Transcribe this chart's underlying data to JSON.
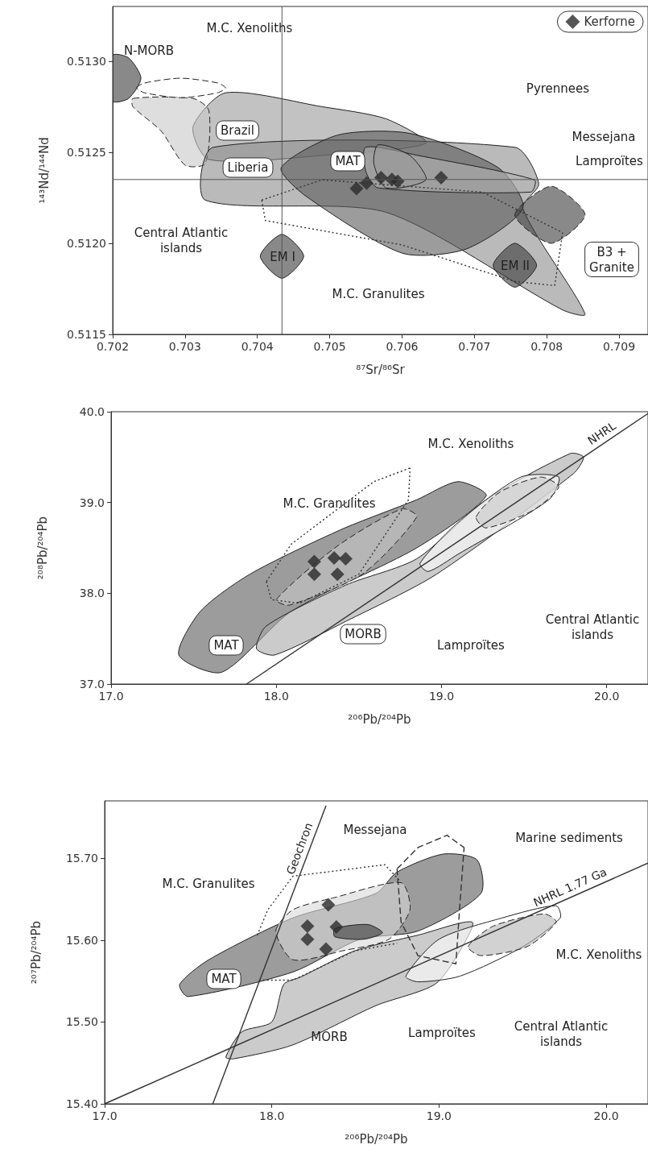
{
  "chart_data": [
    {
      "type": "scatter",
      "xlabel": "⁸⁷Sr/⁸⁶Sr",
      "ylabel": "¹⁴³Nd/¹⁴⁴Nd",
      "xlim": [
        0.702,
        0.7094
      ],
      "ylim": [
        0.5115,
        0.5133
      ],
      "xticks": [
        0.702,
        0.703,
        0.704,
        0.705,
        0.706,
        0.707,
        0.708,
        0.709
      ],
      "yticks": [
        {
          "value": 0.5115,
          "label": "0.5115"
        },
        {
          "value": 0.512,
          "label": "0.5120"
        },
        {
          "value": 0.5125,
          "label": "0.5125"
        },
        {
          "value": 0.513,
          "label": "0.5130"
        }
      ],
      "grid": false,
      "legend": "top right",
      "ref_lines": [
        {
          "axis": "x",
          "value": 0.70434,
          "color": "#555555"
        },
        {
          "axis": "y",
          "value": 0.51235,
          "color": "#555555"
        }
      ],
      "series": [
        {
          "type": "area",
          "color": "#9a9a9a",
          "line_style": "solid",
          "x": [
            0.70356,
            0.70489,
            0.70578,
            0.70633,
            0.70489,
            0.70333,
            0.70311
          ],
          "values": [
            0.512826,
            0.51275,
            0.512683,
            0.512549,
            0.512482,
            0.51246,
            0.512638
          ]
        },
        {
          "type": "area",
          "color": "#c8c8c8",
          "line_style": "dashed",
          "x": [
            0.70228,
            0.70311,
            0.70333,
            0.70328,
            0.703,
            0.70267,
            0.70228
          ],
          "values": [
            0.512795,
            0.512795,
            0.512728,
            0.512438,
            0.512429,
            0.512616,
            0.51275
          ]
        },
        {
          "type": "area",
          "color": "#8c8c8c",
          "line_style": "solid",
          "x": [
            0.70339,
            0.70756,
            0.70789,
            0.70767,
            0.70853,
            0.70822,
            0.70578,
            0.70328
          ],
          "values": [
            0.512527,
            0.512527,
            0.512326,
            0.512192,
            0.511612,
            0.511634,
            0.51217,
            0.512237
          ]
        },
        {
          "type": "area",
          "color": "#5a5a5a",
          "line_style": "solid",
          "x": [
            0.70433,
            0.70511,
            0.70611,
            0.70733,
            0.70767,
            0.70689,
            0.706,
            0.70467
          ],
          "values": [
            0.512415,
            0.512594,
            0.512603,
            0.512415,
            0.512192,
            0.511969,
            0.511946,
            0.512259
          ]
        },
        {
          "type": "area",
          "color": "#b4b4b4",
          "line_style": "solid",
          "x": [
            0.7055,
            0.70622,
            0.70783,
            0.70778,
            0.70567,
            0.7055
          ],
          "values": [
            0.512527,
            0.512482,
            0.512348,
            0.512281,
            0.512304,
            0.512393
          ]
        },
        {
          "type": "area",
          "color": "#9a9a9a",
          "line_style": "solid",
          "x": [
            0.70567,
            0.70611,
            0.70633,
            0.70578,
            0.70561
          ],
          "values": [
            0.51254,
            0.512482,
            0.512348,
            0.512304,
            0.512438
          ]
        },
        {
          "type": "area",
          "color": "#ffffff",
          "line_style": "dashed",
          "x": [
            0.70233,
            0.70244,
            0.70294,
            0.70345,
            0.70356,
            0.70345,
            0.70294,
            0.70244
          ],
          "values": [
            0.512853,
            0.51288,
            0.512906,
            0.51288,
            0.512853,
            0.512826,
            0.512799,
            0.512826
          ]
        },
        {
          "type": "area",
          "color": "#3a3a3a",
          "line_style": "solid",
          "x": [
            0.702,
            0.70222,
            0.70239,
            0.70222,
            0.702
          ],
          "values": [
            0.513031,
            0.513018,
            0.512906,
            0.512795,
            0.512781
          ]
        },
        {
          "type": "area",
          "color": "#3a3a3a",
          "line_style": "dashed",
          "x": [
            0.70756,
            0.70806,
            0.70853,
            0.70806
          ],
          "values": [
            0.512156,
            0.512313,
            0.512156,
            0.512
          ]
        },
        {
          "type": "area",
          "color": "#3a3a3a",
          "line_style": "solid",
          "x": [
            0.70404,
            0.70434,
            0.70464,
            0.70434
          ],
          "values": [
            0.511929,
            0.512049,
            0.511929,
            0.511808
          ]
        },
        {
          "type": "area",
          "color": "#3a3a3a",
          "line_style": "solid",
          "x": [
            0.70726,
            0.70756,
            0.70786,
            0.70756
          ],
          "values": [
            0.511879,
            0.512,
            0.511879,
            0.511759
          ]
        },
        {
          "type": "line",
          "color": "#333333",
          "line_style": "dotted",
          "x": [
            0.70406,
            0.70489,
            0.70711,
            0.70822
          ],
          "values": [
            0.512237,
            0.512348,
            0.512281,
            0.512058
          ]
        },
        {
          "type": "line",
          "color": "#333333",
          "line_style": "dotted",
          "x": [
            0.70406,
            0.70411,
            0.706,
            0.70756,
            0.70811,
            0.70822
          ],
          "values": [
            0.512237,
            0.512125,
            0.511991,
            0.51179,
            0.511768,
            0.512058
          ]
        },
        {
          "name": "Kerforne",
          "color": "#2a2a2a",
          "marker": "diamond",
          "x": [
            0.70537,
            0.70551,
            0.70571,
            0.70586,
            0.70594,
            0.70654
          ],
          "values": [
            0.5123,
            0.51233,
            0.51236,
            0.51235,
            0.51234,
            0.51236
          ]
        }
      ],
      "annotations": [
        "N-MORB",
        "M.C. Xenoliths",
        "Brazil",
        "Liberia",
        "MAT",
        "Pyrennees",
        "Messejana",
        "Lamproïtes",
        "Central Atlantic\nislands",
        "M.C. Granulites",
        "EM I",
        "EM II",
        "B3 +\nGranite"
      ]
    },
    {
      "type": "scatter",
      "xlabel": "²⁰⁶Pb/²⁰⁴Pb",
      "ylabel": "²⁰⁸Pb/²⁰⁴Pb",
      "xlim": [
        17.0,
        20.25
      ],
      "ylim": [
        37.0,
        40.0
      ],
      "xticks": [
        {
          "value": 17,
          "label": "17.0"
        },
        {
          "value": 18,
          "label": "18.0"
        },
        {
          "value": 19,
          "label": "19.0"
        },
        {
          "value": 20,
          "label": "20.0"
        }
      ],
      "yticks": [
        {
          "value": 37,
          "label": "37.0"
        },
        {
          "value": 38,
          "label": "38.0"
        },
        {
          "value": 39,
          "label": "39.0"
        },
        {
          "value": 40,
          "label": "40.0"
        }
      ],
      "grid": false,
      "series": [
        {
          "type": "area",
          "color": "#5a5a5a",
          "line_style": "solid",
          "x": [
            17.41,
            17.54,
            17.84,
            18.39,
            18.85,
            19.1,
            19.27,
            18.85,
            18.09,
            17.67
          ],
          "values": [
            37.32,
            37.8,
            38.21,
            38.7,
            39.03,
            39.23,
            39.07,
            38.5,
            37.8,
            37.13
          ]
        },
        {
          "type": "area",
          "color": "#a8a8a8",
          "line_style": "solid",
          "x": [
            17.88,
            17.94,
            18.42,
            18.85,
            19.27,
            19.78,
            19.86,
            19.8,
            18.97,
            18.42,
            17.99
          ],
          "values": [
            37.39,
            37.64,
            38.09,
            38.38,
            39.03,
            39.54,
            39.5,
            39.32,
            38.21,
            37.69,
            37.32
          ]
        },
        {
          "type": "area",
          "color": "#ffffff",
          "line_style": "solid",
          "x": [
            18.87,
            19.1,
            19.48,
            19.71,
            19.65,
            19.1,
            18.92
          ],
          "values": [
            38.33,
            38.78,
            39.28,
            39.28,
            39.03,
            38.43,
            38.24
          ]
        },
        {
          "type": "area",
          "color": "#c8c8c8",
          "line_style": "dashed",
          "x": [
            19.21,
            19.35,
            19.6,
            19.71,
            19.55,
            19.27
          ],
          "values": [
            38.84,
            39.11,
            39.28,
            39.17,
            38.91,
            38.72
          ]
        },
        {
          "type": "area",
          "color": "#c8c8c8",
          "line_style": "dashed",
          "x": [
            18.0,
            18.37,
            18.76,
            18.85,
            18.52,
            18.08
          ],
          "values": [
            37.93,
            38.52,
            38.93,
            38.84,
            38.21,
            37.87
          ]
        },
        {
          "type": "line",
          "color": "#333333",
          "line_style": "dotted",
          "x": [
            17.94,
            18.09,
            18.59,
            18.81
          ],
          "values": [
            38.13,
            38.54,
            39.23,
            39.38
          ]
        },
        {
          "type": "line",
          "color": "#333333",
          "line_style": "dotted",
          "x": [
            17.94,
            17.97,
            18.14,
            18.5,
            18.8,
            18.81
          ],
          "values": [
            38.13,
            37.93,
            37.89,
            38.21,
            39.03,
            39.38
          ]
        },
        {
          "type": "line",
          "name": "NHRL",
          "color": "#333333",
          "line_style": "solid",
          "x": [
            17.82,
            20.25
          ],
          "values": [
            37.0,
            39.98
          ]
        },
        {
          "color": "#2a2a2a",
          "marker": "diamond",
          "x": [
            18.23,
            18.35,
            18.42,
            18.23,
            18.37
          ],
          "values": [
            38.35,
            38.39,
            38.38,
            38.21,
            38.21
          ]
        }
      ],
      "annotations": [
        "M.C. Xenoliths",
        "M.C. Granulites",
        "MAT",
        "MORB",
        "Lamproïtes",
        "Central Atlantic\nislands"
      ]
    },
    {
      "type": "scatter",
      "xlabel": "²⁰⁶Pb/²⁰⁴Pb",
      "ylabel": "²⁰⁷Pb/²⁰⁴Pb",
      "xlim": [
        17.0,
        20.25
      ],
      "ylim": [
        15.4,
        15.77
      ],
      "xticks": [
        {
          "value": 17,
          "label": "17.0"
        },
        {
          "value": 18,
          "label": "18.0"
        },
        {
          "value": 19,
          "label": "19.0"
        },
        {
          "value": 20,
          "label": "20.0"
        }
      ],
      "yticks": [
        {
          "value": 15.4,
          "label": "15.40"
        },
        {
          "value": 15.5,
          "label": "15.50"
        },
        {
          "value": 15.6,
          "label": "15.60"
        },
        {
          "value": 15.7,
          "label": "15.70"
        }
      ],
      "grid": false,
      "series": [
        {
          "type": "area",
          "color": "#a8a8a8",
          "line_style": "solid",
          "x": [
            17.725,
            17.821,
            18.0,
            18.072,
            18.174,
            18.498,
            18.874,
            19.198,
            19.126,
            18.976,
            18.623,
            18.126,
            17.773
          ],
          "values": [
            15.457,
            15.488,
            15.5,
            15.546,
            15.555,
            15.587,
            15.606,
            15.622,
            15.587,
            15.546,
            15.52,
            15.472,
            15.455
          ]
        },
        {
          "type": "area",
          "color": "#ffffff",
          "line_style": "solid",
          "x": [
            18.802,
            19.0,
            19.377,
            19.7,
            19.725,
            19.502,
            19.126,
            18.874
          ],
          "values": [
            15.556,
            15.601,
            15.627,
            15.642,
            15.627,
            15.592,
            15.556,
            15.549
          ]
        },
        {
          "type": "area",
          "color": "#5a5a5a",
          "line_style": "solid",
          "x": [
            17.449,
            17.623,
            18.126,
            18.623,
            18.749,
            19.024,
            19.227,
            19.251,
            18.874,
            18.527,
            18.126,
            17.498
          ],
          "values": [
            15.546,
            15.576,
            15.627,
            15.657,
            15.683,
            15.705,
            15.698,
            15.657,
            15.611,
            15.601,
            15.561,
            15.531
          ]
        },
        {
          "type": "area",
          "color": "#d8d8d8",
          "line_style": "dashed",
          "x": [
            18.024,
            18.126,
            18.377,
            18.773,
            18.826,
            18.7,
            18.425,
            18.126
          ],
          "values": [
            15.611,
            15.637,
            15.652,
            15.67,
            15.637,
            15.601,
            15.587,
            15.576
          ]
        },
        {
          "type": "area",
          "color": "#3a3a3a",
          "line_style": "solid",
          "x": [
            18.377,
            18.575,
            18.662,
            18.551,
            18.377
          ],
          "values": [
            15.614,
            15.619,
            15.609,
            15.601,
            15.604
          ]
        },
        {
          "type": "area",
          "color": "#b4b4b4",
          "line_style": "dashed",
          "x": [
            19.174,
            19.324,
            19.628,
            19.7,
            19.527,
            19.251
          ],
          "values": [
            15.592,
            15.617,
            15.632,
            15.622,
            15.592,
            15.581
          ]
        },
        {
          "type": "line",
          "color": "#333333",
          "line_style": "dotted",
          "x": [
            17.913,
            17.976,
            18.126,
            18.676,
            18.763
          ],
          "values": [
            15.606,
            15.637,
            15.678,
            15.692,
            15.673
          ]
        },
        {
          "type": "line",
          "color": "#333333",
          "line_style": "dotted",
          "x": [
            17.923,
            18.126,
            18.498,
            18.749
          ],
          "values": [
            15.551,
            15.551,
            15.587,
            15.596
          ]
        },
        {
          "type": "line",
          "color": "#333333",
          "line_style": "dashed",
          "x": [
            18.749,
            18.874,
            19.048,
            19.15
          ],
          "values": [
            15.687,
            15.713,
            15.728,
            15.713
          ]
        },
        {
          "type": "line",
          "color": "#333333",
          "line_style": "dashed",
          "x": [
            18.749,
            18.773,
            18.874,
            19.101,
            19.126,
            19.15
          ],
          "values": [
            15.687,
            15.622,
            15.581,
            15.571,
            15.647,
            15.713
          ]
        },
        {
          "type": "line",
          "name": "Geochron",
          "color": "#333333",
          "line_style": "solid",
          "x": [
            17.647,
            18.324
          ],
          "values": [
            15.4,
            15.764
          ]
        },
        {
          "type": "line",
          "name": "NHRL 1.77 Ga",
          "color": "#333333",
          "line_style": "solid",
          "x": [
            17.0,
            20.25
          ],
          "values": [
            15.4,
            15.694
          ]
        },
        {
          "color": "#2a2a2a",
          "marker": "diamond",
          "x": [
            18.338,
            18.213,
            18.213,
            18.386,
            18.324
          ],
          "values": [
            15.643,
            15.617,
            15.601,
            15.616,
            15.589
          ]
        }
      ],
      "annotations": [
        "Messejana",
        "Marine sediments",
        "M.C. Granulites",
        "MAT",
        "MORB",
        "Lamproïtes",
        "Central Atlantic\nislands",
        "M.C. Xenoliths"
      ]
    }
  ]
}
